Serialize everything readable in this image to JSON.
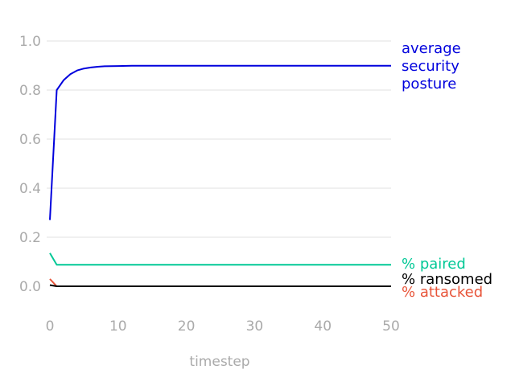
{
  "chart_data": {
    "type": "line",
    "title": "",
    "xlabel": "timestep",
    "ylabel": "",
    "xlim": [
      0,
      50
    ],
    "ylim": [
      -0.1,
      1.05
    ],
    "x_ticks": [
      "0",
      "10",
      "20",
      "30",
      "40",
      "50"
    ],
    "y_ticks": [
      "0.0",
      "0.2",
      "0.4",
      "0.6",
      "0.8",
      "1.0"
    ],
    "grid": "horizontal",
    "legend": "direct labels at right end of lines",
    "series": [
      {
        "name": "average security posture",
        "label_lines": [
          "average",
          "security",
          "posture"
        ],
        "color": "#0000dd",
        "x": [
          0,
          1,
          2,
          3,
          4,
          5,
          6,
          7,
          8,
          10,
          12,
          15,
          20,
          30,
          40,
          50
        ],
        "values": [
          0.27,
          0.8,
          0.84,
          0.865,
          0.88,
          0.888,
          0.892,
          0.895,
          0.897,
          0.898,
          0.899,
          0.899,
          0.899,
          0.899,
          0.899,
          0.899
        ]
      },
      {
        "name": "% paired",
        "label_lines": [
          "% paired"
        ],
        "color": "#00c896",
        "x": [
          0,
          1,
          5,
          10,
          20,
          30,
          40,
          50
        ],
        "values": [
          0.135,
          0.088,
          0.088,
          0.088,
          0.088,
          0.088,
          0.088,
          0.088
        ]
      },
      {
        "name": "% ransomed",
        "label_lines": [
          "% ransomed"
        ],
        "color": "#000000",
        "x": [
          0,
          1,
          10,
          20,
          30,
          40,
          50
        ],
        "values": [
          0.005,
          0.0,
          0.0,
          0.0,
          0.0,
          0.0,
          0.0
        ]
      },
      {
        "name": "% attacked",
        "label_lines": [
          "% attacked"
        ],
        "color": "#e8553a",
        "x": [
          0,
          1,
          10,
          20,
          30,
          40,
          50
        ],
        "values": [
          0.03,
          0.0,
          0.0,
          0.0,
          0.0,
          0.0,
          0.0
        ]
      }
    ]
  }
}
